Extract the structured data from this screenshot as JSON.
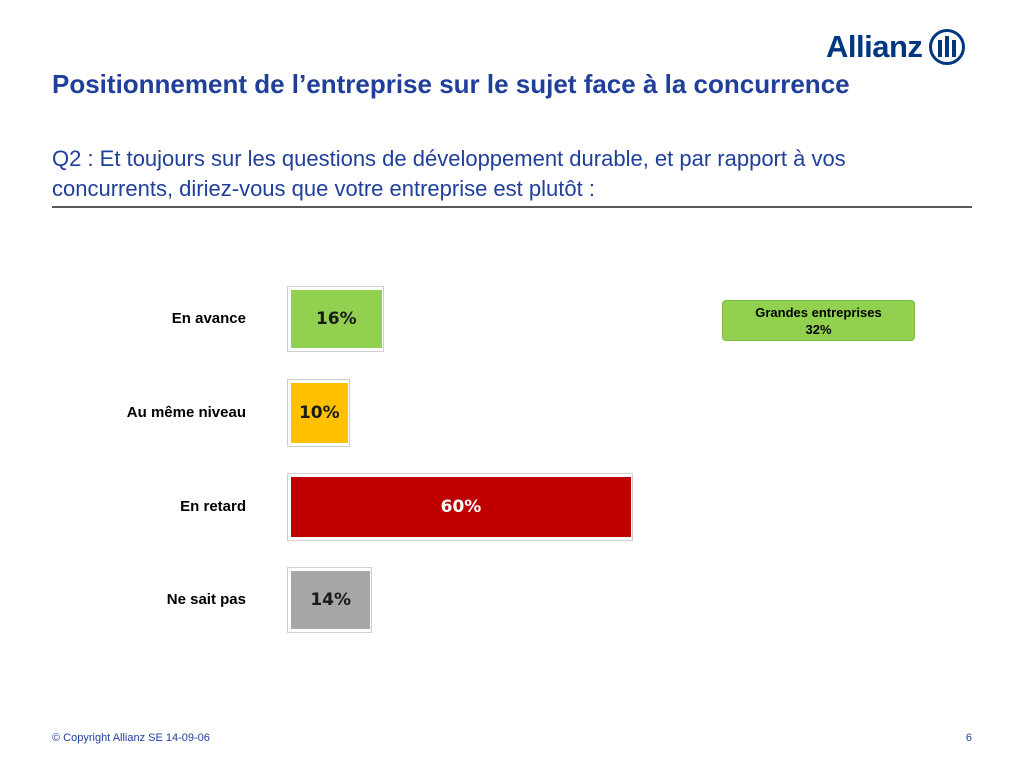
{
  "brand": {
    "name": "Allianz",
    "color": "#003781"
  },
  "header": {
    "title": "Positionnement de l’entreprise sur le sujet face à la concurrence",
    "subtitle": "Q2 : Et toujours sur les questions de développement durable, et par rapport à vos concurrents, diriez-vous que votre entreprise est plutôt :"
  },
  "chart_data": {
    "type": "bar",
    "orientation": "horizontal",
    "categories": [
      "En avance",
      "Au même niveau",
      "En retard",
      "Ne sait pas"
    ],
    "values": [
      16,
      10,
      60,
      14
    ],
    "value_labels": [
      "16%",
      "10%",
      "60%",
      "14%"
    ],
    "colors": [
      "#92d050",
      "#ffc000",
      "#c00000",
      "#a6a6a6"
    ],
    "label_colors": [
      "#1a1a1a",
      "#1a1a1a",
      "#ffffff",
      "#1a1a1a"
    ],
    "xlim": [
      0,
      60
    ],
    "grid": false,
    "annotation": {
      "line1": "Grandes entreprises",
      "line2": "32%",
      "color": "#92d050"
    }
  },
  "footer": {
    "copyright": "© Copyright Allianz SE 14-09-06",
    "page": "6"
  }
}
